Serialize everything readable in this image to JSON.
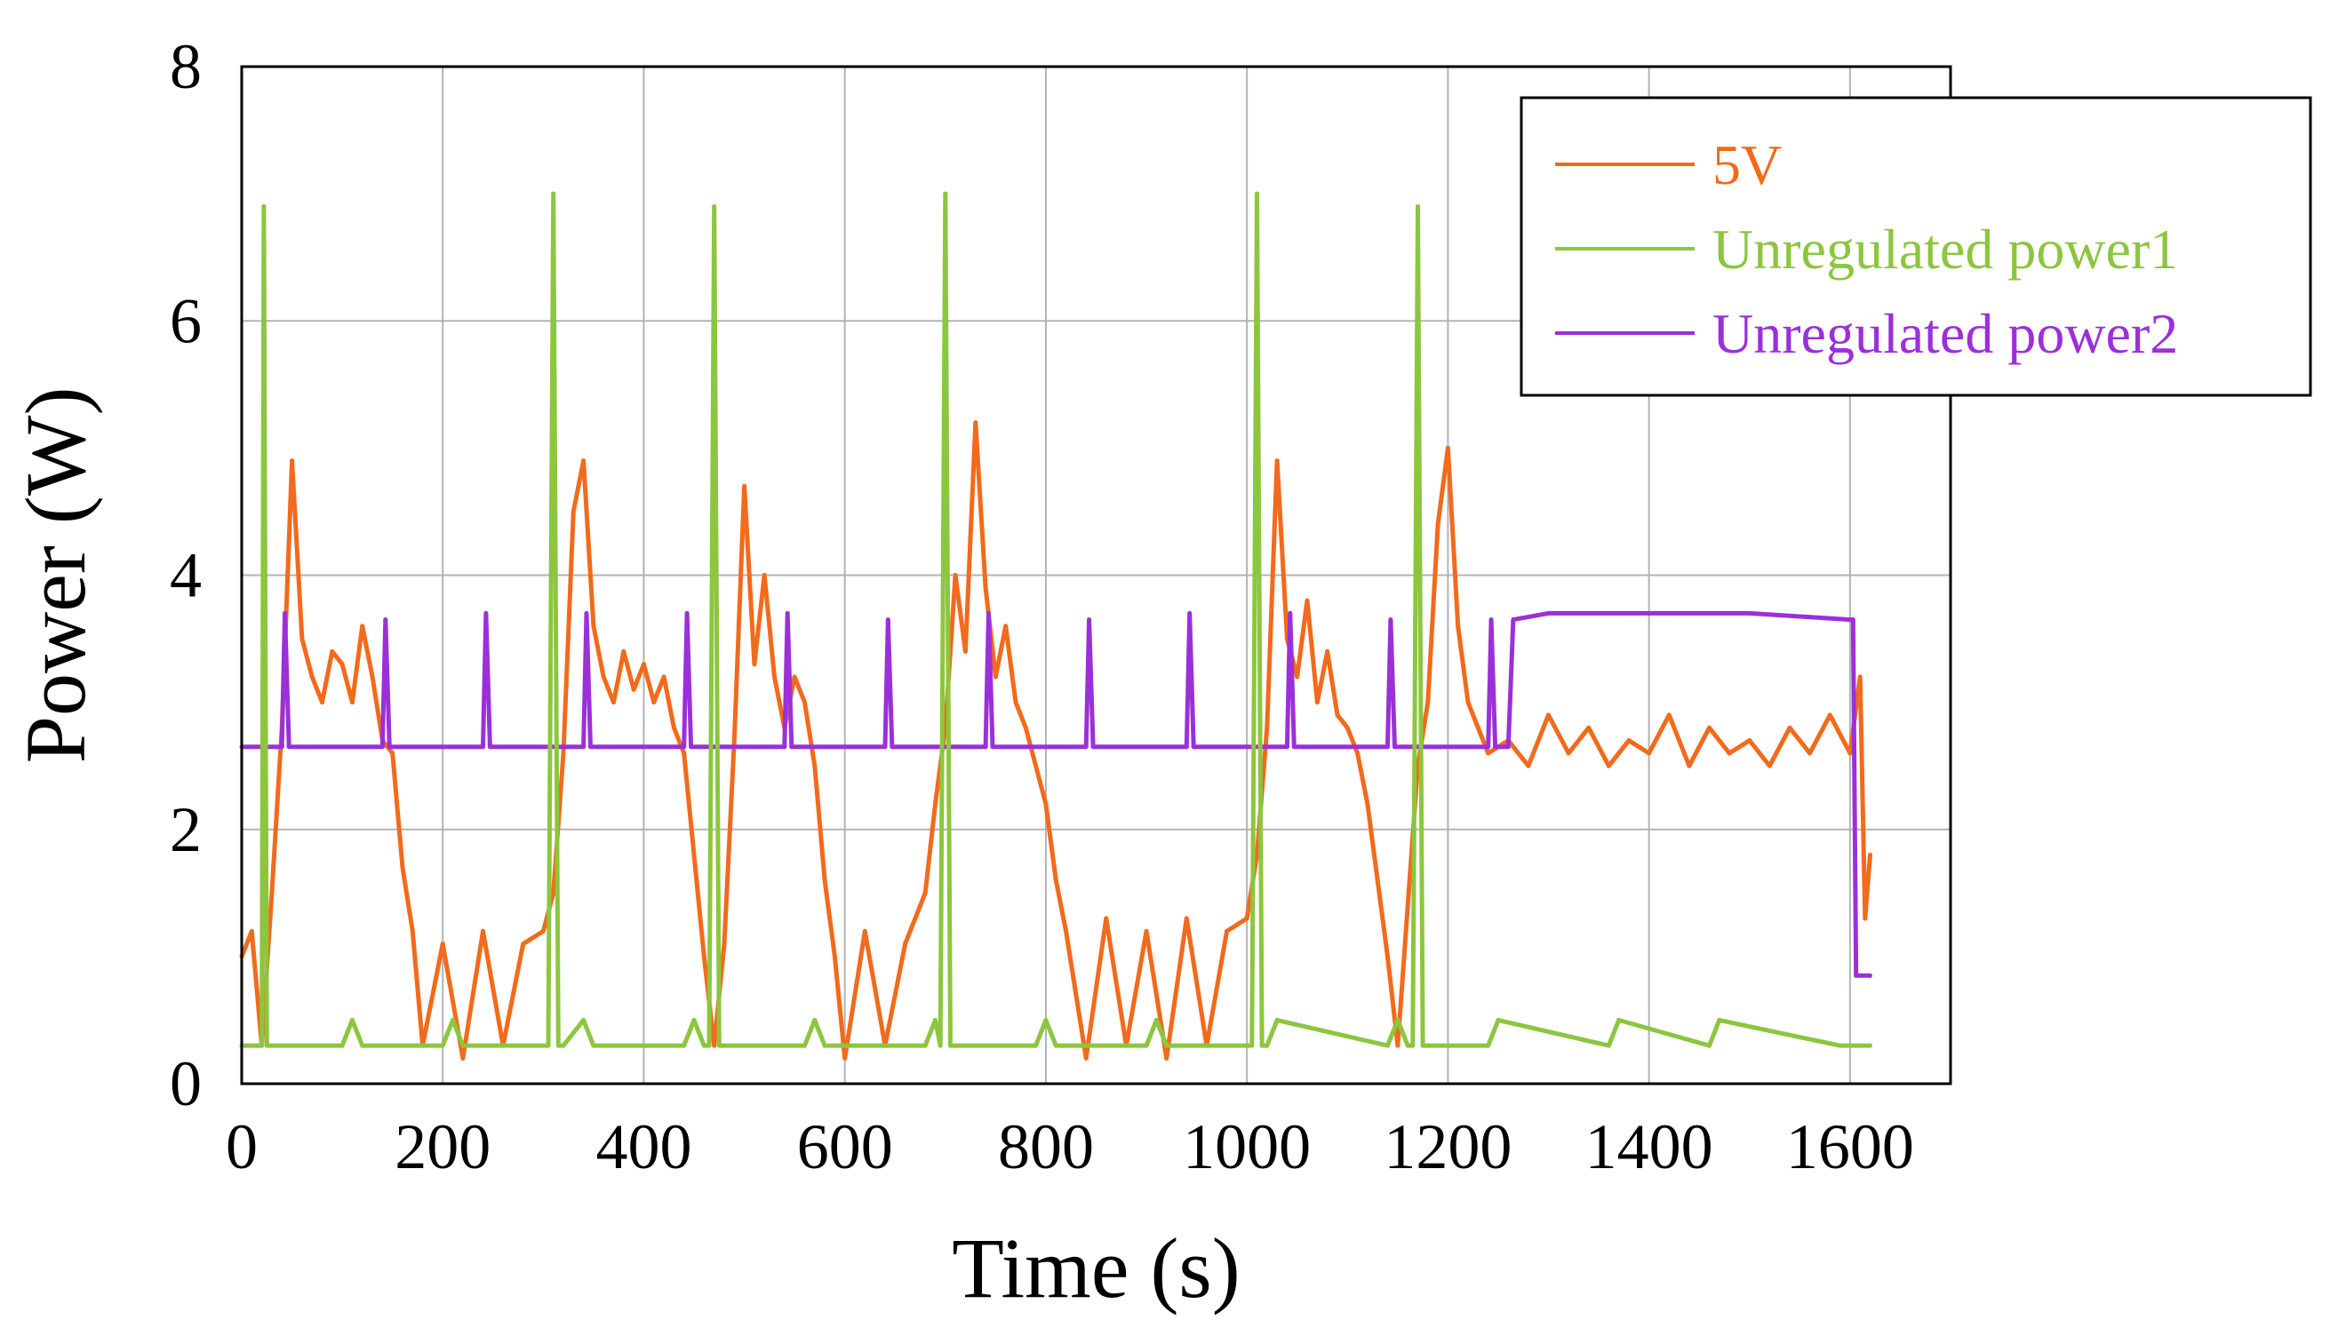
{
  "chart_data": {
    "type": "line",
    "title": "",
    "xlabel": "Time (s)",
    "ylabel": "Power (W)",
    "xlim": [
      0,
      1700
    ],
    "ylim": [
      0,
      8
    ],
    "xticks": [
      0,
      200,
      400,
      600,
      800,
      1000,
      1200,
      1400,
      1600
    ],
    "yticks": [
      0,
      2,
      4,
      6,
      8
    ],
    "grid": true,
    "legend_position": "top-right",
    "series": [
      {
        "name": "5V",
        "color": "#f26a1b",
        "x": [
          0,
          10,
          20,
          30,
          40,
          50,
          60,
          70,
          80,
          90,
          100,
          110,
          120,
          130,
          140,
          150,
          160,
          170,
          180,
          200,
          220,
          240,
          260,
          280,
          300,
          310,
          320,
          330,
          340,
          350,
          360,
          370,
          380,
          390,
          400,
          410,
          420,
          430,
          440,
          450,
          460,
          470,
          480,
          490,
          500,
          510,
          520,
          530,
          540,
          550,
          560,
          570,
          580,
          590,
          600,
          620,
          640,
          660,
          680,
          690,
          700,
          710,
          720,
          730,
          740,
          750,
          760,
          770,
          780,
          790,
          800,
          810,
          820,
          840,
          860,
          880,
          900,
          920,
          940,
          960,
          980,
          1000,
          1010,
          1020,
          1030,
          1040,
          1050,
          1060,
          1070,
          1080,
          1090,
          1100,
          1110,
          1120,
          1130,
          1140,
          1150,
          1160,
          1170,
          1180,
          1190,
          1200,
          1210,
          1220,
          1230,
          1240,
          1260,
          1280,
          1300,
          1320,
          1340,
          1360,
          1380,
          1400,
          1420,
          1440,
          1460,
          1480,
          1500,
          1520,
          1540,
          1560,
          1580,
          1600,
          1610,
          1615,
          1620
        ],
        "values": [
          1.0,
          1.2,
          0.3,
          1.5,
          2.8,
          4.9,
          3.5,
          3.2,
          3.0,
          3.4,
          3.3,
          3.0,
          3.6,
          3.2,
          2.7,
          2.6,
          1.7,
          1.2,
          0.3,
          1.1,
          0.2,
          1.2,
          0.3,
          1.1,
          1.2,
          1.5,
          2.6,
          4.5,
          4.9,
          3.6,
          3.2,
          3.0,
          3.4,
          3.1,
          3.3,
          3.0,
          3.2,
          2.8,
          2.6,
          1.8,
          1.0,
          0.3,
          1.1,
          2.7,
          4.7,
          3.3,
          4.0,
          3.2,
          2.8,
          3.2,
          3.0,
          2.5,
          1.6,
          1.0,
          0.2,
          1.2,
          0.3,
          1.1,
          1.5,
          2.2,
          2.8,
          4.0,
          3.4,
          5.2,
          3.9,
          3.2,
          3.6,
          3.0,
          2.8,
          2.5,
          2.2,
          1.6,
          1.2,
          0.2,
          1.3,
          0.3,
          1.2,
          0.2,
          1.3,
          0.3,
          1.2,
          1.3,
          1.8,
          2.8,
          4.9,
          3.5,
          3.2,
          3.8,
          3.0,
          3.4,
          2.9,
          2.8,
          2.6,
          2.2,
          1.6,
          1.0,
          0.3,
          1.4,
          2.5,
          3.0,
          4.4,
          5.0,
          3.6,
          3.0,
          2.8,
          2.6,
          2.7,
          2.5,
          2.9,
          2.6,
          2.8,
          2.5,
          2.7,
          2.6,
          2.9,
          2.5,
          2.8,
          2.6,
          2.7,
          2.5,
          2.8,
          2.6,
          2.9,
          2.6,
          3.2,
          1.3,
          1.8
        ]
      },
      {
        "name": "Unregulated power1",
        "color": "#8cc63f",
        "x": [
          0,
          15,
          20,
          22,
          25,
          30,
          100,
          110,
          120,
          200,
          210,
          220,
          300,
          305,
          310,
          315,
          320,
          340,
          350,
          440,
          450,
          460,
          465,
          470,
          475,
          480,
          560,
          570,
          580,
          680,
          690,
          695,
          700,
          705,
          720,
          790,
          800,
          810,
          900,
          910,
          920,
          1000,
          1005,
          1010,
          1015,
          1020,
          1030,
          1140,
          1150,
          1160,
          1165,
          1170,
          1175,
          1180,
          1240,
          1250,
          1360,
          1370,
          1460,
          1470,
          1590,
          1600,
          1620
        ],
        "values": [
          0.3,
          0.3,
          0.3,
          6.9,
          0.3,
          0.3,
          0.3,
          0.5,
          0.3,
          0.3,
          0.5,
          0.3,
          0.3,
          0.3,
          7.0,
          0.3,
          0.3,
          0.5,
          0.3,
          0.3,
          0.5,
          0.3,
          0.3,
          6.9,
          0.3,
          0.3,
          0.3,
          0.5,
          0.3,
          0.3,
          0.5,
          0.3,
          7.0,
          0.3,
          0.3,
          0.3,
          0.5,
          0.3,
          0.3,
          0.5,
          0.3,
          0.3,
          0.3,
          7.0,
          0.3,
          0.3,
          0.5,
          0.3,
          0.5,
          0.3,
          0.3,
          6.9,
          0.3,
          0.3,
          0.3,
          0.5,
          0.3,
          0.5,
          0.3,
          0.5,
          0.3,
          0.3,
          0.3
        ]
      },
      {
        "name": "Unregulated power2",
        "color": "#9b30d9",
        "x": [
          0,
          40,
          43,
          47,
          140,
          143,
          147,
          240,
          243,
          247,
          340,
          343,
          347,
          440,
          443,
          447,
          540,
          543,
          547,
          640,
          643,
          647,
          740,
          743,
          747,
          840,
          843,
          847,
          940,
          943,
          947,
          1040,
          1043,
          1047,
          1140,
          1143,
          1147,
          1240,
          1243,
          1247,
          1260,
          1265,
          1300,
          1400,
          1500,
          1600,
          1603,
          1606,
          1620
        ],
        "values": [
          2.65,
          2.65,
          3.7,
          2.65,
          2.65,
          3.65,
          2.65,
          2.65,
          3.7,
          2.65,
          2.65,
          3.7,
          2.65,
          2.65,
          3.7,
          2.65,
          2.65,
          3.7,
          2.65,
          2.65,
          3.65,
          2.65,
          2.65,
          3.7,
          2.65,
          2.65,
          3.65,
          2.65,
          2.65,
          3.7,
          2.65,
          2.65,
          3.7,
          2.65,
          2.65,
          3.65,
          2.65,
          2.65,
          3.65,
          2.65,
          2.65,
          3.65,
          3.7,
          3.7,
          3.7,
          3.65,
          3.65,
          0.85,
          0.85
        ]
      }
    ]
  }
}
